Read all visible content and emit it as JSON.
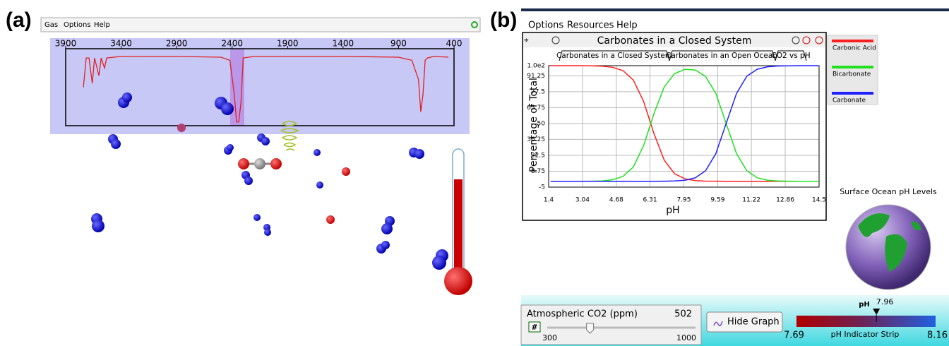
{
  "panel_a": {
    "label": "(a)",
    "menu": [
      "Gas",
      "Options",
      "Help"
    ]
  },
  "panel_b": {
    "label": "(b)",
    "menu": [
      "Options",
      "Resources",
      "Help"
    ],
    "tabs": [
      "Carbonates in a Closed System",
      "Carbonates in an Open Ocean",
      "CO2 vs pH"
    ],
    "globe_title": "Surface Ocean pH Levels",
    "co2_slider": {
      "label": "Atmospheric CO2 (ppm)",
      "value": 502,
      "min": 300,
      "max": 1000
    },
    "button": "Hide Graph",
    "ph_strip": {
      "title": "pH",
      "value": 7.96,
      "min": 7.69,
      "max": 8.16,
      "label": "pH Indicator Strip"
    }
  },
  "chart_data": [
    {
      "type": "line",
      "x": [
        3740,
        3715,
        3690,
        3660,
        3640,
        3600,
        3580,
        3550,
        3530,
        3400,
        2900,
        2500,
        2420,
        2380,
        2360,
        2340,
        2320,
        2300,
        2200,
        1400,
        900,
        780,
        720,
        700,
        680,
        660,
        640,
        580,
        450
      ],
      "series": [
        {
          "color": "#e02020",
          "values": [
            50,
            88,
            88,
            55,
            88,
            65,
            88,
            75,
            88,
            90,
            90,
            89,
            85,
            40,
            5,
            5,
            30,
            88,
            90,
            90,
            89,
            85,
            60,
            18,
            40,
            85,
            88,
            90,
            89
          ]
        }
      ],
      "xlim": [
        3900,
        400
      ],
      "xticks": [
        3900,
        3400,
        2900,
        2400,
        1900,
        1400,
        900,
        400
      ],
      "ylim": [
        0,
        100
      ]
    },
    {
      "type": "line",
      "title": "Carbonates in a Closed System",
      "x_label": "pH",
      "y_label": "Percentage of Total",
      "x": [
        1.5,
        2,
        2.5,
        3,
        3.5,
        4,
        4.5,
        5,
        5.5,
        6,
        6.5,
        7,
        7.5,
        8,
        8.5,
        9,
        9.5,
        10,
        10.5,
        11,
        11.5,
        12,
        12.5,
        13,
        13.5,
        14,
        14.5
      ],
      "series": [
        {
          "name": "Carbonic Acid",
          "color": "#ff2020",
          "values": [
            100,
            100,
            100,
            100,
            99.9,
            99.6,
            98.6,
            95.7,
            87.6,
            69.1,
            41.4,
            18.3,
            6.6,
            2.2,
            0.7,
            0.2,
            0.1,
            0,
            0,
            0,
            0,
            0,
            0,
            0,
            0,
            0,
            0
          ]
        },
        {
          "name": "Bicarbonate",
          "color": "#20e020",
          "values": [
            0,
            0,
            0,
            0,
            0.1,
            0.4,
            1.4,
            4.3,
            12.4,
            30.9,
            58.5,
            81.6,
            93.1,
            96.9,
            96.3,
            90.7,
            76.0,
            50,
            24.0,
            9.1,
            3.1,
            1.0,
            0.3,
            0.1,
            0,
            0,
            0
          ]
        },
        {
          "name": "Carbonate",
          "color": "#2020ff",
          "values": [
            0,
            0,
            0,
            0,
            0,
            0,
            0,
            0,
            0,
            0,
            0,
            0.1,
            0.3,
            1.0,
            3.0,
            9.1,
            24.0,
            50,
            76.0,
            90.9,
            96.9,
            99.0,
            99.7,
            99.9,
            100,
            100,
            100
          ]
        }
      ],
      "xlim": [
        1.4,
        14.5
      ],
      "xticks": [
        1.4,
        3.04,
        4.68,
        6.31,
        7.95,
        9.59,
        11.22,
        12.86,
        14.5
      ],
      "ylim": [
        -5,
        100
      ],
      "yticks": [
        {
          "value": 100,
          "label": "1.0e2"
        },
        91.25,
        77.5,
        63.75,
        50,
        36.25,
        22.5,
        8.75,
        -5
      ],
      "grid": true,
      "legend": "right"
    }
  ]
}
